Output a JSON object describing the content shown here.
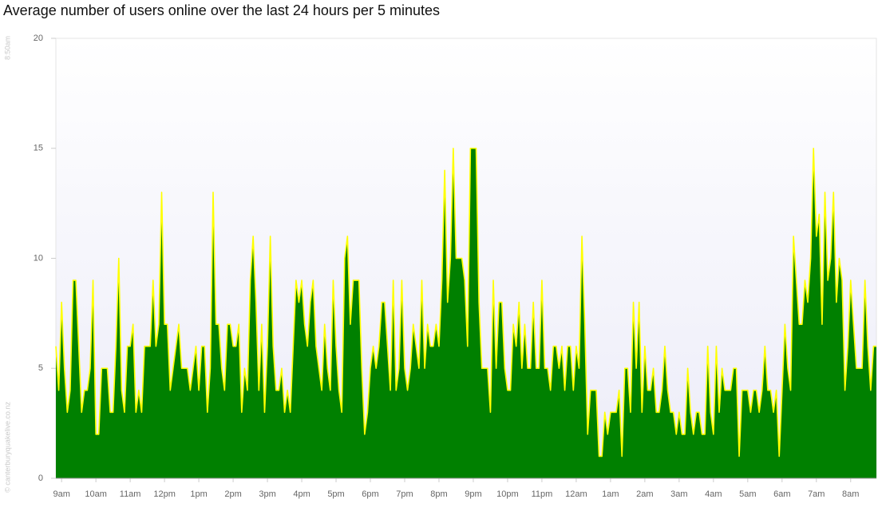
{
  "chart_data": {
    "type": "area",
    "title": "Average number of users online over the last 24 hours per 5 minutes",
    "start_label": "8:50am",
    "credit": "© canterburyquakelive.co.nz",
    "categories": [
      null,
      null,
      "9am",
      null,
      null,
      null,
      null,
      null,
      null,
      null,
      null,
      null,
      null,
      null,
      "10am",
      null,
      null,
      null,
      null,
      null,
      null,
      null,
      null,
      null,
      null,
      null,
      "11am",
      null,
      null,
      null,
      null,
      null,
      null,
      null,
      null,
      null,
      null,
      null,
      "12pm",
      null,
      null,
      null,
      null,
      null,
      null,
      null,
      null,
      null,
      null,
      null,
      "1pm",
      null,
      null,
      null,
      null,
      null,
      null,
      null,
      null,
      null,
      null,
      null,
      "2pm",
      null,
      null,
      null,
      null,
      null,
      null,
      null,
      null,
      null,
      null,
      null,
      "3pm",
      null,
      null,
      null,
      null,
      null,
      null,
      null,
      null,
      null,
      null,
      null,
      "4pm",
      null,
      null,
      null,
      null,
      null,
      null,
      null,
      null,
      null,
      null,
      null,
      "5pm",
      null,
      null,
      null,
      null,
      null,
      null,
      null,
      null,
      null,
      null,
      null,
      "6pm",
      null,
      null,
      null,
      null,
      null,
      null,
      null,
      null,
      null,
      null,
      null,
      "7pm",
      null,
      null,
      null,
      null,
      null,
      null,
      null,
      null,
      null,
      null,
      null,
      "8pm",
      null,
      null,
      null,
      null,
      null,
      null,
      null,
      null,
      null,
      null,
      null,
      "9pm",
      null,
      null,
      null,
      null,
      null,
      null,
      null,
      null,
      null,
      null,
      null,
      "10pm",
      null,
      null,
      null,
      null,
      null,
      null,
      null,
      null,
      null,
      null,
      null,
      "11pm",
      null,
      null,
      null,
      null,
      null,
      null,
      null,
      null,
      null,
      null,
      null,
      "12am",
      null,
      null,
      null,
      null,
      null,
      null,
      null,
      null,
      null,
      null,
      null,
      "1am",
      null,
      null,
      null,
      null,
      null,
      null,
      null,
      null,
      null,
      null,
      null,
      "2am",
      null,
      null,
      null,
      null,
      null,
      null,
      null,
      null,
      null,
      null,
      null,
      "3am",
      null,
      null,
      null,
      null,
      null,
      null,
      null,
      null,
      null,
      null,
      null,
      "4am",
      null,
      null,
      null,
      null,
      null,
      null,
      null,
      null,
      null,
      null,
      null,
      "5am",
      null,
      null,
      null,
      null,
      null,
      null,
      null,
      null,
      null,
      null,
      null,
      "6am",
      null,
      null,
      null,
      null,
      null,
      null,
      null,
      null,
      null,
      null,
      null,
      "7am",
      null,
      null,
      null,
      null,
      null,
      null,
      null,
      null,
      null,
      null,
      null,
      "8am",
      null,
      null,
      null,
      null,
      null,
      null,
      null,
      null,
      null
    ],
    "series": [
      {
        "color": "#008000",
        "line_color": "#ffff00",
        "values": [
          6,
          4,
          8,
          5,
          3,
          4,
          9,
          9,
          6,
          3,
          4,
          4,
          5,
          9,
          2,
          2,
          5,
          5,
          5,
          3,
          3,
          6,
          10,
          4,
          3,
          6,
          6,
          7,
          3,
          4,
          3,
          6,
          6,
          6,
          9,
          6,
          7,
          13,
          7,
          7,
          4,
          5,
          6,
          7,
          5,
          5,
          5,
          4,
          5,
          6,
          4,
          6,
          6,
          3,
          5,
          13,
          7,
          7,
          5,
          4,
          7,
          7,
          6,
          6,
          7,
          3,
          5,
          4,
          9,
          11,
          8,
          4,
          7,
          3,
          6,
          11,
          6,
          4,
          4,
          5,
          3,
          4,
          3,
          6,
          9,
          8,
          9,
          7,
          6,
          8,
          9,
          6,
          5,
          4,
          7,
          5,
          4,
          9,
          6,
          4,
          3,
          10,
          11,
          7,
          9,
          9,
          9,
          5,
          2,
          3,
          5,
          6,
          5,
          6,
          8,
          8,
          6,
          4,
          9,
          4,
          5,
          9,
          5,
          4,
          5,
          7,
          6,
          5,
          9,
          5,
          7,
          6,
          6,
          7,
          6,
          9,
          14,
          8,
          10,
          15,
          10,
          10,
          10,
          9,
          6,
          15,
          15,
          15,
          8,
          5,
          5,
          5,
          3,
          9,
          5,
          8,
          8,
          5,
          4,
          4,
          7,
          6,
          8,
          5,
          7,
          5,
          5,
          8,
          5,
          5,
          9,
          5,
          5,
          4,
          6,
          6,
          5,
          6,
          4,
          6,
          6,
          4,
          6,
          5,
          11,
          7,
          2,
          4,
          4,
          4,
          1,
          1,
          3,
          2,
          3,
          3,
          3,
          4,
          1,
          5,
          5,
          3,
          8,
          5,
          8,
          3,
          6,
          4,
          4,
          5,
          3,
          3,
          4,
          6,
          4,
          3,
          3,
          2,
          3,
          2,
          2,
          5,
          3,
          2,
          3,
          3,
          2,
          2,
          6,
          3,
          2,
          6,
          3,
          5,
          4,
          4,
          4,
          5,
          5,
          1,
          4,
          4,
          4,
          3,
          4,
          4,
          3,
          4,
          6,
          4,
          4,
          3,
          4,
          1,
          4,
          7,
          5,
          4,
          11,
          9,
          7,
          7,
          9,
          8,
          10,
          15,
          11,
          12,
          7,
          13,
          9,
          10,
          13,
          8,
          10,
          9,
          4,
          6,
          9,
          7,
          5,
          5,
          5,
          9,
          6,
          4,
          6,
          6
        ]
      }
    ],
    "ylim": [
      0,
      20
    ],
    "yticks": [
      0,
      5,
      10,
      15,
      20
    ]
  }
}
